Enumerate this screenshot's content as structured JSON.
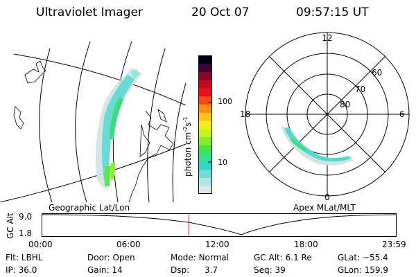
{
  "header": {
    "instrument": "Ultraviolet Imager",
    "date": "20 Oct 07",
    "time": "09:57:15 UT"
  },
  "colorbar": {
    "ticks": [
      "100",
      "10"
    ],
    "unit": "photon cm",
    "unit_exp1": "-2",
    "unit_s": "s",
    "unit_exp2": "-1",
    "colors": [
      "#dfe9e9",
      "#b8e4e4",
      "#6fdcdc",
      "#2ed7c8",
      "#33e08c",
      "#3ee64a",
      "#7ef02a",
      "#c8f51e",
      "#f0f01e",
      "#ffc21a",
      "#ff8a14",
      "#ff4a10",
      "#e8101a",
      "#c40822",
      "#8a0628",
      "#3c0636",
      "#000010"
    ]
  },
  "geo_panel": {
    "label": "Geographic Lat/Lon"
  },
  "polar_panel": {
    "label": "Apex MLat/MLT",
    "mlt_labels": {
      "top": "12",
      "left": "18",
      "right": "6",
      "bottom": "0"
    },
    "lat_labels": [
      "60",
      "70",
      "80"
    ]
  },
  "timeline": {
    "ylabel": "GC Alt",
    "yticks": [
      "9.0",
      "1.8"
    ],
    "xticks": [
      "00:00",
      "06:00",
      "12:00",
      "18:00",
      "23:59"
    ],
    "cursor_hour": 9.95,
    "alt_curve": [
      {
        "h": 0,
        "alt": 9.0
      },
      {
        "h": 1,
        "alt": 9.0
      },
      {
        "h": 2,
        "alt": 8.95
      },
      {
        "h": 3,
        "alt": 8.85
      },
      {
        "h": 4,
        "alt": 8.7
      },
      {
        "h": 5,
        "alt": 8.5
      },
      {
        "h": 6,
        "alt": 8.2
      },
      {
        "h": 7,
        "alt": 7.85
      },
      {
        "h": 8,
        "alt": 7.4
      },
      {
        "h": 9,
        "alt": 6.8
      },
      {
        "h": 10,
        "alt": 6.1
      },
      {
        "h": 11,
        "alt": 5.0
      },
      {
        "h": 12,
        "alt": 3.8
      },
      {
        "h": 13,
        "alt": 2.4
      },
      {
        "h": 13.5,
        "alt": 1.6
      },
      {
        "h": 14,
        "alt": 2.6
      },
      {
        "h": 15,
        "alt": 4.2
      },
      {
        "h": 16,
        "alt": 5.5
      },
      {
        "h": 17,
        "alt": 6.5
      },
      {
        "h": 18,
        "alt": 7.3
      },
      {
        "h": 19,
        "alt": 7.9
      },
      {
        "h": 20,
        "alt": 8.35
      },
      {
        "h": 21,
        "alt": 8.65
      },
      {
        "h": 22,
        "alt": 8.85
      },
      {
        "h": 23,
        "alt": 8.95
      },
      {
        "h": 23.99,
        "alt": 9.0
      }
    ]
  },
  "footer": {
    "flt_label": "Flt:",
    "flt_value": "LBHL",
    "ip_label": "IP:",
    "ip_value": "36.0",
    "door_label": "Door:",
    "door_value": "Open",
    "gain_label": "Gain:",
    "gain_value": "14",
    "mode_label": "Mode:",
    "mode_value": "Normal",
    "dsp_label": "Dsp:",
    "dsp_value": "3.7",
    "gcalt_label": "GC Alt:",
    "gcalt_value": "6.1 Re",
    "seq_label": "Seq:",
    "seq_value": "39",
    "glat_label": "GLat:",
    "glat_value": "−55.4",
    "glon_label": "GLon:",
    "glon_value": "159.9"
  }
}
